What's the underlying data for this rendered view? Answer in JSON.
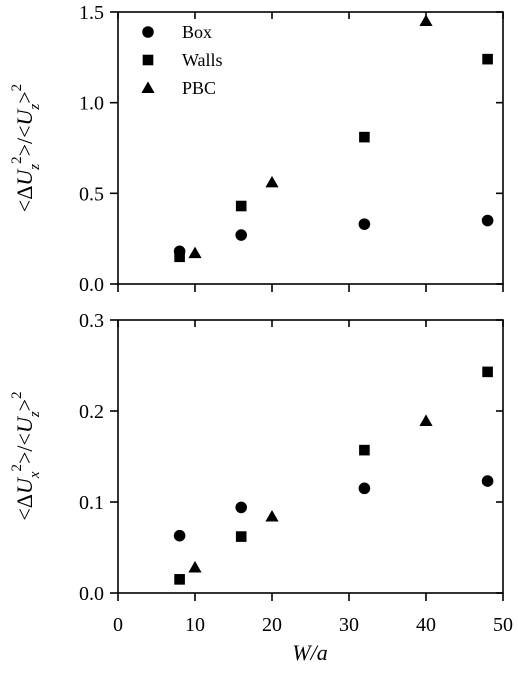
{
  "colors": {
    "marker": "#000000",
    "axis": "#000000",
    "background": "#ffffff"
  },
  "chart_data": [
    {
      "type": "scatter",
      "title": "",
      "xlabel": "",
      "ylabel": "<ΔUz²>/<Uz>²",
      "xlim": [
        0,
        50
      ],
      "ylim": [
        0,
        1.5
      ],
      "yticks": [
        "0.0",
        "0.5",
        "1.0",
        "1.5"
      ],
      "grid": false,
      "legend_position": "top-left",
      "series": [
        {
          "name": "Box",
          "marker": "circle",
          "x": [
            8,
            16,
            32,
            48
          ],
          "y": [
            0.18,
            0.27,
            0.33,
            0.35
          ]
        },
        {
          "name": "Walls",
          "marker": "square",
          "x": [
            8,
            16,
            32,
            48
          ],
          "y": [
            0.15,
            0.43,
            0.81,
            1.24
          ]
        },
        {
          "name": "PBC",
          "marker": "triangle",
          "x": [
            10,
            20,
            40
          ],
          "y": [
            0.17,
            0.56,
            1.45
          ]
        }
      ]
    },
    {
      "type": "scatter",
      "title": "",
      "xlabel": "W/a",
      "ylabel": "<ΔUx²>/<Uz>²",
      "xlim": [
        0,
        50
      ],
      "ylim": [
        0,
        0.3
      ],
      "xticks": [
        "0",
        "10",
        "20",
        "30",
        "40",
        "50"
      ],
      "yticks": [
        "0.0",
        "0.1",
        "0.2",
        "0.3"
      ],
      "grid": false,
      "series": [
        {
          "name": "Box",
          "marker": "circle",
          "x": [
            8,
            16,
            32,
            48
          ],
          "y": [
            0.063,
            0.094,
            0.115,
            0.123
          ]
        },
        {
          "name": "Walls",
          "marker": "square",
          "x": [
            8,
            16,
            32,
            48
          ],
          "y": [
            0.015,
            0.062,
            0.157,
            0.243
          ]
        },
        {
          "name": "PBC",
          "marker": "triangle",
          "x": [
            10,
            20,
            40
          ],
          "y": [
            0.028,
            0.084,
            0.189
          ]
        }
      ]
    }
  ]
}
